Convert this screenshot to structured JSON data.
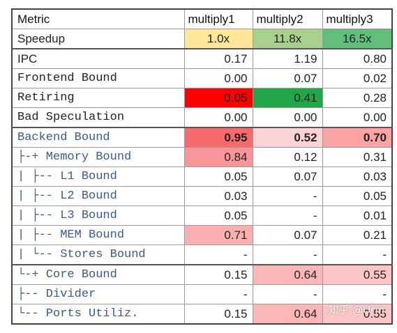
{
  "headers": [
    "Metric",
    "multiply1",
    "multiply2",
    "multiply3"
  ],
  "rows": [
    {
      "metric": "Speedup",
      "values": [
        "1.0x",
        "11.8x",
        "16.5x"
      ],
      "colors": [
        "#ffe699",
        "#a9d08e",
        "#63be7b"
      ]
    },
    {
      "metric": "IPC",
      "values": [
        "0.17",
        "1.19",
        "0.80"
      ],
      "colors": [
        "",
        "",
        ""
      ]
    },
    {
      "metric": "Frontend Bound",
      "values": [
        "0.00",
        "0.07",
        "0.02"
      ],
      "colors": [
        "",
        "",
        ""
      ]
    },
    {
      "metric": "Retiring",
      "values": [
        "0.05",
        "0.41",
        "0.28"
      ],
      "colors": [
        "#ff0000",
        "#21a748",
        ""
      ]
    },
    {
      "metric": "Bad Speculation",
      "values": [
        "0.00",
        "0.00",
        "0.00"
      ],
      "colors": [
        "",
        "",
        ""
      ]
    },
    {
      "metric": "Backend Bound",
      "values": [
        "0.95",
        "0.52",
        "0.70"
      ],
      "colors": [
        "#f8696b",
        "#fcd3d4",
        "#fba3a4"
      ]
    },
    {
      "metric": "├-+ Memory Bound",
      "values": [
        "0.84",
        "0.12",
        "0.31"
      ],
      "colors": [
        "#f99597",
        "",
        ""
      ]
    },
    {
      "metric": "| ├-- L1 Bound",
      "values": [
        "0.05",
        "0.07",
        "0.03"
      ],
      "colors": [
        "",
        "",
        ""
      ]
    },
    {
      "metric": "| ├-- L2 Bound",
      "values": [
        "0.03",
        "-",
        "0.05"
      ],
      "colors": [
        "",
        "",
        ""
      ]
    },
    {
      "metric": "| ├-- L3 Bound",
      "values": [
        "0.05",
        "-",
        "0.01"
      ],
      "colors": [
        "",
        "",
        ""
      ]
    },
    {
      "metric": "| ├-- MEM Bound",
      "values": [
        "0.71",
        "0.07",
        "0.21"
      ],
      "colors": [
        "#fab0b1",
        "",
        ""
      ]
    },
    {
      "metric": "| └-- Stores Bound",
      "values": [
        "-",
        "-",
        "-"
      ],
      "colors": [
        "",
        "",
        ""
      ]
    },
    {
      "metric": "└-+ Core Bound",
      "values": [
        "0.15",
        "0.64",
        "0.55"
      ],
      "colors": [
        "",
        "#fbb7b8",
        "#fcc5c6"
      ]
    },
    {
      "metric": "  ├-- Divider",
      "values": [
        "-",
        "-",
        "-"
      ],
      "colors": [
        "",
        "",
        ""
      ]
    },
    {
      "metric": "  └-- Ports Utiliz.",
      "values": [
        "0.15",
        "0.64",
        "0.55"
      ],
      "colors": [
        "",
        "#fbb7b8",
        "#fcc5c6"
      ]
    }
  ],
  "watermark": "知乎 @Urin"
}
